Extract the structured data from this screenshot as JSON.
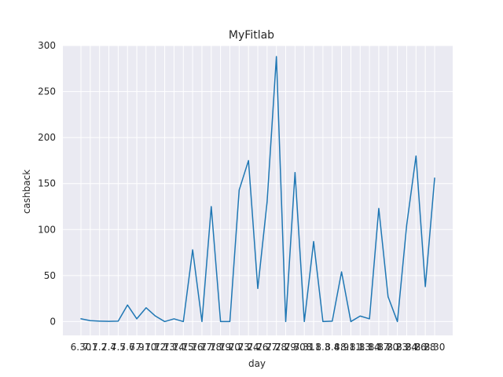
{
  "chart_data": {
    "type": "line",
    "title": "MyFitlab",
    "xlabel": "day",
    "ylabel": "cashback",
    "ylim": [
      -15,
      300
    ],
    "yticks": [
      0,
      50,
      100,
      150,
      200,
      250,
      300
    ],
    "grid": true,
    "legend": "none",
    "colors": {
      "line": "#1f77b4",
      "plot_bg": "#eaeaf2",
      "grid": "#ffffff",
      "text": "#262626"
    },
    "categories": [
      "6.30",
      "7.1",
      "7.2",
      "7.4",
      "7.5",
      "7.6",
      "7.9",
      "7.10",
      "7.12",
      "7.13",
      "7.14",
      "7.15",
      "7.16",
      "7.17",
      "7.18",
      "7.19",
      "7.20",
      "7.23",
      "7.24",
      "7.26",
      "7.27",
      "7.28",
      "7.29",
      "7.30",
      "7.31",
      "8.1",
      "8.3",
      "8.4",
      "8.9",
      "8.11",
      "8.13",
      "8.14",
      "8.17",
      "8.20",
      "8.23",
      "8.24",
      "8.26",
      "8.28",
      "8.30"
    ],
    "values": [
      3,
      1,
      0.5,
      0.3,
      0.5,
      18,
      3,
      15,
      6,
      0,
      3,
      0,
      78,
      0,
      125,
      0,
      0,
      143,
      175,
      36,
      130,
      288,
      0,
      162,
      0,
      87,
      0,
      0.5,
      54,
      0,
      6,
      3,
      123,
      27,
      0,
      105,
      180,
      38,
      156
    ]
  }
}
